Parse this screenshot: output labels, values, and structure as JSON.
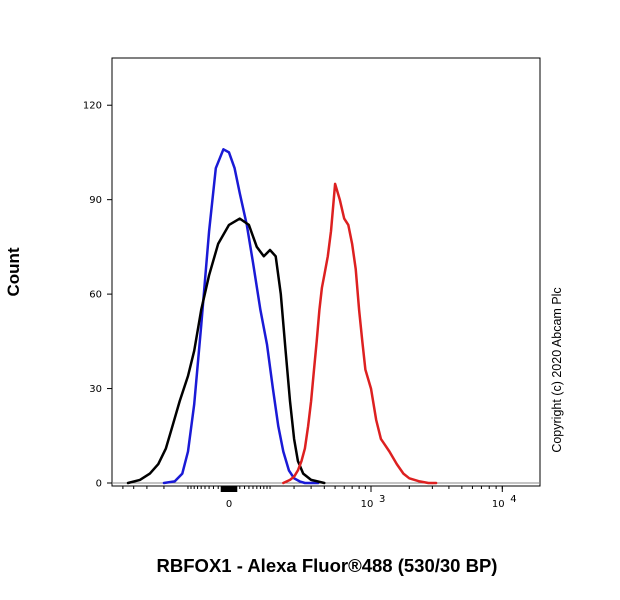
{
  "chart_data": {
    "type": "line",
    "title": "",
    "xlabel": "RBFOX1 - Alexa Fluor®488 (530/30 BP)",
    "ylabel": "Count",
    "ylim": [
      0,
      135
    ],
    "x_scale": "biexponential",
    "y_ticks": [
      {
        "value": 0,
        "label": "0"
      },
      {
        "value": 30,
        "label": "30"
      },
      {
        "value": 60,
        "label": "60"
      },
      {
        "value": 90,
        "label": "90"
      },
      {
        "value": 120,
        "label": "120"
      }
    ],
    "x_ticks": [
      {
        "value": 0,
        "base": "0",
        "exp": ""
      },
      {
        "value": 1000,
        "base": "10",
        "exp": "3"
      },
      {
        "value": 10000,
        "base": "10",
        "exp": "4"
      }
    ],
    "grid": false,
    "legend": "none",
    "series": [
      {
        "color": "#1a1ad6",
        "x": [
          -200,
          -150,
          -120,
          -100,
          -80,
          -60,
          -40,
          -25,
          -10,
          0,
          10,
          20,
          35,
          50,
          70,
          90,
          110,
          130,
          150,
          175,
          200,
          230,
          260,
          300,
          350
        ],
        "y": [
          0,
          0.5,
          3,
          10,
          25,
          50,
          80,
          100,
          106,
          105,
          100,
          92,
          82,
          70,
          55,
          44,
          30,
          18,
          10,
          4,
          1.5,
          0.5,
          0,
          0,
          0
        ]
      },
      {
        "color": "#000000",
        "x": [
          -450,
          -350,
          -280,
          -230,
          -190,
          -160,
          -130,
          -100,
          -80,
          -60,
          -40,
          -20,
          0,
          20,
          40,
          60,
          80,
          100,
          120,
          140,
          160,
          180,
          200,
          220,
          250,
          300,
          400
        ],
        "y": [
          0,
          1,
          3,
          6,
          11,
          18,
          26,
          34,
          42,
          55,
          66,
          76,
          82,
          84,
          82,
          75,
          72,
          74,
          72,
          60,
          42,
          26,
          14,
          7,
          3,
          1,
          0
        ]
      },
      {
        "color": "#dd2020",
        "x": [
          150,
          180,
          200,
          220,
          240,
          260,
          280,
          300,
          320,
          340,
          360,
          380,
          400,
          430,
          460,
          500,
          550,
          600,
          650,
          700,
          750,
          800,
          850,
          900,
          1000,
          1100,
          1200,
          1400,
          1600,
          1800,
          2000,
          2400,
          2800,
          3200
        ],
        "y": [
          0,
          1,
          2,
          4,
          7,
          11,
          18,
          26,
          36,
          45,
          55,
          62,
          66,
          72,
          80,
          95,
          90,
          84,
          82,
          76,
          68,
          55,
          45,
          36,
          30,
          20,
          14,
          10,
          6,
          3,
          1.5,
          0.5,
          0,
          0
        ]
      }
    ]
  },
  "copyright": "Copyright (c) 2020 Abcam Plc"
}
